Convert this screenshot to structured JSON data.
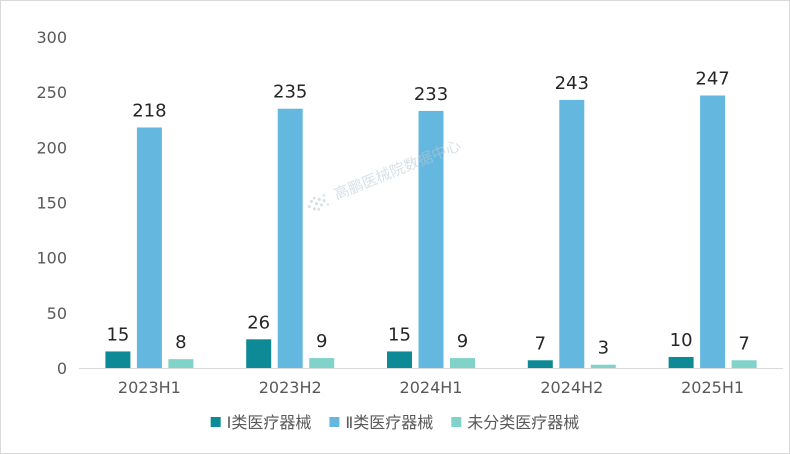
{
  "chart_data": {
    "type": "bar",
    "categories": [
      "2023H1",
      "2023H2",
      "2024H1",
      "2024H2",
      "2025H1"
    ],
    "series": [
      {
        "name": "Ⅰ类医疗器械",
        "values": [
          15,
          26,
          15,
          7,
          10
        ],
        "color": "#0e8a96"
      },
      {
        "name": "Ⅱ类医疗器械",
        "values": [
          218,
          235,
          233,
          243,
          247
        ],
        "color": "#64b8df"
      },
      {
        "name": "未分类医疗器械",
        "values": [
          8,
          9,
          9,
          3,
          7
        ],
        "color": "#7fd3c9"
      }
    ],
    "yticks": [
      0,
      50,
      100,
      150,
      200,
      250,
      300
    ],
    "ylim": [
      0,
      300
    ],
    "grid": false,
    "legend_position": "bottom",
    "data_labels": true
  },
  "watermark": {
    "text": "高鹏医械院数据中心"
  }
}
